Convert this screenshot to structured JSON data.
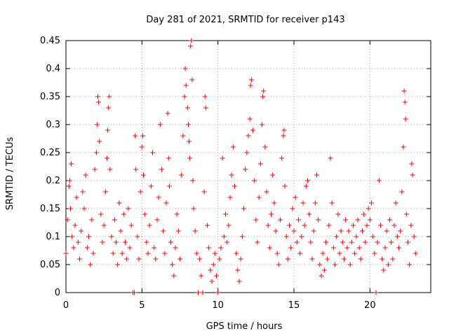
{
  "chart_data": {
    "type": "scatter",
    "title": "Day 281 of 2021, SRMTID for receiver p143",
    "xlabel": "GPS time / hours",
    "ylabel": "SRMTID / TECUs",
    "xlim": [
      0,
      24
    ],
    "ylim": [
      0,
      0.45
    ],
    "xticks": [
      0,
      5,
      10,
      15,
      20
    ],
    "xtick_labels": [
      "0",
      "5",
      "10",
      "15",
      "20"
    ],
    "yticks": [
      0,
      0.05,
      0.1,
      0.15,
      0.2,
      0.25,
      0.3,
      0.35,
      0.4,
      0.45
    ],
    "ytick_labels": [
      "0",
      "0.05",
      "0.1",
      "0.15",
      "0.2",
      "0.25",
      "0.3",
      "0.35",
      "0.4",
      "0.45"
    ],
    "grid": true,
    "marker": "plus",
    "color": "#ff0000",
    "series": [
      {
        "name": "SRMTID",
        "points": [
          [
            0.0,
            0.07
          ],
          [
            0.1,
            0.13
          ],
          [
            0.2,
            0.19
          ],
          [
            0.25,
            0.2
          ],
          [
            0.3,
            0.15
          ],
          [
            0.35,
            0.23
          ],
          [
            0.4,
            0.1
          ],
          [
            0.5,
            0.08
          ],
          [
            0.6,
            0.12
          ],
          [
            0.7,
            0.17
          ],
          [
            0.8,
            0.09
          ],
          [
            0.9,
            0.06
          ],
          [
            1.0,
            0.11
          ],
          [
            1.1,
            0.18
          ],
          [
            1.2,
            0.15
          ],
          [
            1.3,
            0.21
          ],
          [
            1.4,
            0.08
          ],
          [
            1.5,
            0.1
          ],
          [
            1.6,
            0.05
          ],
          [
            1.7,
            0.13
          ],
          [
            1.8,
            0.07
          ],
          [
            1.9,
            0.22
          ],
          [
            2.0,
            0.25
          ],
          [
            2.05,
            0.3
          ],
          [
            2.1,
            0.35
          ],
          [
            2.15,
            0.34
          ],
          [
            2.2,
            0.27
          ],
          [
            2.3,
            0.14
          ],
          [
            2.4,
            0.09
          ],
          [
            2.5,
            0.12
          ],
          [
            2.6,
            0.18
          ],
          [
            2.7,
            0.24
          ],
          [
            2.75,
            0.29
          ],
          [
            2.8,
            0.33
          ],
          [
            2.85,
            0.35
          ],
          [
            2.9,
            0.22
          ],
          [
            3.0,
            0.1
          ],
          [
            3.1,
            0.07
          ],
          [
            3.2,
            0.13
          ],
          [
            3.3,
            0.09
          ],
          [
            3.4,
            0.05
          ],
          [
            3.5,
            0.16
          ],
          [
            3.6,
            0.11
          ],
          [
            3.7,
            0.07
          ],
          [
            3.8,
            0.14
          ],
          [
            3.9,
            0.09
          ],
          [
            4.0,
            0.06
          ],
          [
            4.1,
            0.15
          ],
          [
            4.2,
            0.08
          ],
          [
            4.3,
            0.12
          ],
          [
            4.4,
            0.0
          ],
          [
            4.5,
            0.0
          ],
          [
            4.55,
            0.28
          ],
          [
            4.6,
            0.22
          ],
          [
            4.7,
            0.1
          ],
          [
            4.8,
            0.06
          ],
          [
            4.9,
            0.18
          ],
          [
            5.0,
            0.26
          ],
          [
            5.05,
            0.28
          ],
          [
            5.1,
            0.21
          ],
          [
            5.2,
            0.14
          ],
          [
            5.3,
            0.09
          ],
          [
            5.4,
            0.07
          ],
          [
            5.5,
            0.12
          ],
          [
            5.6,
            0.19
          ],
          [
            5.7,
            0.25
          ],
          [
            5.8,
            0.08
          ],
          [
            5.9,
            0.06
          ],
          [
            6.0,
            0.13
          ],
          [
            6.1,
            0.17
          ],
          [
            6.2,
            0.3
          ],
          [
            6.3,
            0.22
          ],
          [
            6.4,
            0.11
          ],
          [
            6.5,
            0.07
          ],
          [
            6.6,
            0.16
          ],
          [
            6.7,
            0.32
          ],
          [
            6.75,
            0.24
          ],
          [
            6.8,
            0.19
          ],
          [
            6.9,
            0.09
          ],
          [
            7.0,
            0.05
          ],
          [
            7.1,
            0.03
          ],
          [
            7.2,
            0.08
          ],
          [
            7.3,
            0.14
          ],
          [
            7.4,
            0.11
          ],
          [
            7.5,
            0.06
          ],
          [
            7.6,
            0.21
          ],
          [
            7.7,
            0.28
          ],
          [
            7.8,
            0.35
          ],
          [
            7.85,
            0.4
          ],
          [
            7.9,
            0.37
          ],
          [
            8.0,
            0.33
          ],
          [
            8.05,
            0.3
          ],
          [
            8.1,
            0.27
          ],
          [
            8.15,
            0.24
          ],
          [
            8.2,
            0.44
          ],
          [
            8.25,
            0.45
          ],
          [
            8.3,
            0.38
          ],
          [
            8.35,
            0.2
          ],
          [
            8.4,
            0.15
          ],
          [
            8.5,
            0.11
          ],
          [
            8.6,
            0.07
          ],
          [
            8.7,
            0.0
          ],
          [
            8.8,
            0.06
          ],
          [
            8.9,
            0.03
          ],
          [
            9.0,
            0.0
          ],
          [
            9.1,
            0.18
          ],
          [
            9.15,
            0.35
          ],
          [
            9.2,
            0.33
          ],
          [
            9.3,
            0.12
          ],
          [
            9.4,
            0.08
          ],
          [
            9.5,
            0.04
          ],
          [
            9.6,
            0.02
          ],
          [
            9.7,
            0.05
          ],
          [
            9.8,
            0.07
          ],
          [
            9.9,
            0.03
          ],
          [
            10.0,
            0.0
          ],
          [
            10.1,
            0.06
          ],
          [
            10.2,
            0.08
          ],
          [
            10.3,
            0.24
          ],
          [
            10.4,
            0.1
          ],
          [
            10.5,
            0.14
          ],
          [
            10.6,
            0.09
          ],
          [
            10.7,
            0.12
          ],
          [
            10.8,
            0.17
          ],
          [
            10.9,
            0.21
          ],
          [
            11.0,
            0.26
          ],
          [
            11.1,
            0.19
          ],
          [
            11.2,
            0.07
          ],
          [
            11.3,
            0.04
          ],
          [
            11.4,
            0.02
          ],
          [
            11.5,
            0.06
          ],
          [
            11.6,
            0.1
          ],
          [
            11.7,
            0.15
          ],
          [
            11.8,
            0.22
          ],
          [
            11.9,
            0.25
          ],
          [
            12.0,
            0.28
          ],
          [
            12.1,
            0.31
          ],
          [
            12.15,
            0.37
          ],
          [
            12.2,
            0.38
          ],
          [
            12.3,
            0.29
          ],
          [
            12.4,
            0.2
          ],
          [
            12.5,
            0.13
          ],
          [
            12.6,
            0.09
          ],
          [
            12.7,
            0.17
          ],
          [
            12.8,
            0.23
          ],
          [
            12.9,
            0.3
          ],
          [
            12.95,
            0.35
          ],
          [
            13.0,
            0.36
          ],
          [
            13.1,
            0.26
          ],
          [
            13.2,
            0.18
          ],
          [
            13.3,
            0.12
          ],
          [
            13.4,
            0.08
          ],
          [
            13.5,
            0.14
          ],
          [
            13.6,
            0.21
          ],
          [
            13.7,
            0.16
          ],
          [
            13.8,
            0.11
          ],
          [
            13.9,
            0.07
          ],
          [
            14.0,
            0.05
          ],
          [
            14.1,
            0.13
          ],
          [
            14.2,
            0.24
          ],
          [
            14.3,
            0.28
          ],
          [
            14.35,
            0.29
          ],
          [
            14.4,
            0.19
          ],
          [
            14.5,
            0.1
          ],
          [
            14.6,
            0.06
          ],
          [
            14.7,
            0.12
          ],
          [
            14.8,
            0.08
          ],
          [
            14.9,
            0.15
          ],
          [
            15.0,
            0.11
          ],
          [
            15.1,
            0.17
          ],
          [
            15.2,
            0.09
          ],
          [
            15.3,
            0.13
          ],
          [
            15.4,
            0.07
          ],
          [
            15.5,
            0.1
          ],
          [
            15.6,
            0.16
          ],
          [
            15.7,
            0.12
          ],
          [
            15.8,
            0.19
          ],
          [
            15.9,
            0.2
          ],
          [
            16.0,
            0.14
          ],
          [
            16.1,
            0.09
          ],
          [
            16.2,
            0.06
          ],
          [
            16.3,
            0.11
          ],
          [
            16.4,
            0.16
          ],
          [
            16.5,
            0.21
          ],
          [
            16.6,
            0.13
          ],
          [
            16.7,
            0.05
          ],
          [
            16.8,
            0.03
          ],
          [
            16.9,
            0.07
          ],
          [
            17.0,
            0.04
          ],
          [
            17.1,
            0.09
          ],
          [
            17.2,
            0.06
          ],
          [
            17.3,
            0.12
          ],
          [
            17.4,
            0.24
          ],
          [
            17.5,
            0.16
          ],
          [
            17.6,
            0.08
          ],
          [
            17.7,
            0.05
          ],
          [
            17.8,
            0.1
          ],
          [
            17.9,
            0.14
          ],
          [
            18.0,
            0.07
          ],
          [
            18.1,
            0.11
          ],
          [
            18.2,
            0.09
          ],
          [
            18.3,
            0.06
          ],
          [
            18.4,
            0.13
          ],
          [
            18.5,
            0.08
          ],
          [
            18.6,
            0.11
          ],
          [
            18.7,
            0.05
          ],
          [
            18.8,
            0.09
          ],
          [
            18.9,
            0.12
          ],
          [
            19.0,
            0.07
          ],
          [
            19.1,
            0.1
          ],
          [
            19.2,
            0.13
          ],
          [
            19.3,
            0.08
          ],
          [
            19.4,
            0.06
          ],
          [
            19.5,
            0.11
          ],
          [
            19.6,
            0.14
          ],
          [
            19.7,
            0.09
          ],
          [
            19.8,
            0.12
          ],
          [
            19.9,
            0.15
          ],
          [
            20.0,
            0.13
          ],
          [
            20.1,
            0.16
          ],
          [
            20.2,
            0.1
          ],
          [
            20.3,
            0.07
          ],
          [
            20.4,
            0.0
          ],
          [
            20.5,
            0.09
          ],
          [
            20.6,
            0.2
          ],
          [
            20.7,
            0.12
          ],
          [
            20.8,
            0.06
          ],
          [
            20.9,
            0.04
          ],
          [
            21.0,
            0.08
          ],
          [
            21.1,
            0.11
          ],
          [
            21.2,
            0.05
          ],
          [
            21.3,
            0.13
          ],
          [
            21.4,
            0.09
          ],
          [
            21.5,
            0.06
          ],
          [
            21.6,
            0.12
          ],
          [
            21.7,
            0.16
          ],
          [
            21.8,
            0.1
          ],
          [
            21.9,
            0.08
          ],
          [
            22.0,
            0.11
          ],
          [
            22.1,
            0.18
          ],
          [
            22.2,
            0.26
          ],
          [
            22.25,
            0.36
          ],
          [
            22.3,
            0.34
          ],
          [
            22.35,
            0.31
          ],
          [
            22.4,
            0.14
          ],
          [
            22.5,
            0.09
          ],
          [
            22.6,
            0.05
          ],
          [
            22.7,
            0.12
          ],
          [
            22.75,
            0.23
          ],
          [
            22.8,
            0.21
          ],
          [
            22.9,
            0.1
          ],
          [
            23.0,
            0.07
          ]
        ]
      }
    ]
  }
}
